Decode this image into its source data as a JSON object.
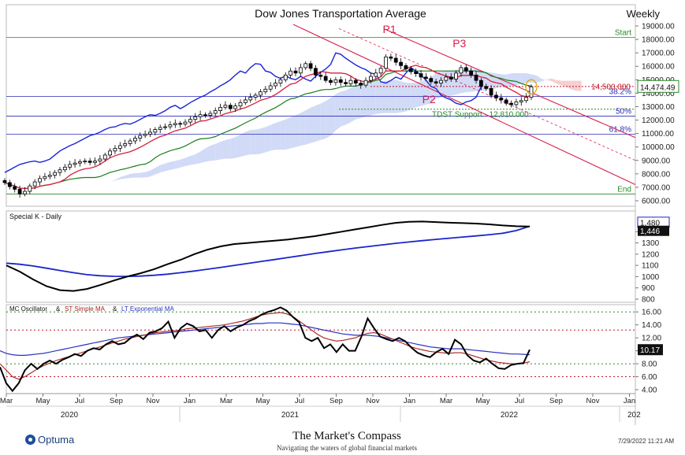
{
  "colors": {
    "price_up": "#ffffff",
    "price_down": "#000000",
    "tenkan": "#d6203a",
    "kijun": "#1a7d1a",
    "chikou": "#1b25d6",
    "cloud_bull": "#c9d3f5",
    "cloud_bear": "#f6c5c8",
    "channel": "#d6204a",
    "fib": "#2b2bb8",
    "special_k": "#000000",
    "special_k_signal": "#1b25c9",
    "mc_osc": "#000000",
    "mc_st": "#a5251f",
    "mc_lt": "#2b32c0",
    "green_dot": "#2a8a2a",
    "red_dot": "#c01a2a"
  },
  "chart_data": [
    {
      "type": "candlestick",
      "title": "Dow Jones Transportation Average",
      "timeframe": "Weekly",
      "ylim": [
        6000,
        19000
      ],
      "y_ticks": [
        "19000.00",
        "18000.00",
        "17000.00",
        "16000.00",
        "15000.00",
        "14000.00",
        "13000.00",
        "12000.00",
        "11000.00",
        "10000.00",
        "9000.00",
        "8000.00",
        "7000.00",
        "6000.00"
      ],
      "last_price": "14,474.49",
      "levels": [
        {
          "label": "Start",
          "value": 18150,
          "color": "#2a8a2a"
        },
        {
          "label": "38.2%",
          "value": 13750,
          "color": "#2b2bb8"
        },
        {
          "label": "50%",
          "value": 12300,
          "color": "#2b2bb8"
        },
        {
          "label": "61.8%",
          "value": 10950,
          "color": "#2b2bb8"
        },
        {
          "label": "End",
          "value": 6500,
          "color": "#2a8a2a"
        }
      ],
      "resistance": {
        "label": "14,500.000",
        "value": 14500
      },
      "support": {
        "label": "TDST Support - 12,810.000",
        "value": 12810
      },
      "annotations": [
        {
          "label": "P1",
          "idx": 0
        },
        {
          "label": "P2",
          "idx": 1
        },
        {
          "label": "P3",
          "idx": 2
        }
      ],
      "x_ticks": [
        "Mar",
        "May",
        "Jul",
        "Sep",
        "Nov",
        "Jan",
        "Mar",
        "May",
        "Jul",
        "Sep",
        "Nov",
        "Jan",
        "Mar",
        "May",
        "Jul",
        "Sep",
        "Nov",
        "Jan"
      ],
      "year_ticks": [
        "2020",
        "2021",
        "2022",
        "202"
      ],
      "close": [
        7350,
        7050,
        6850,
        6500,
        6700,
        7100,
        7400,
        7650,
        7800,
        7900,
        8100,
        8300,
        8500,
        8700,
        8800,
        8900,
        8950,
        8850,
        8950,
        9100,
        9400,
        9700,
        9900,
        10100,
        10250,
        10450,
        10650,
        10850,
        10950,
        11100,
        11300,
        11450,
        11500,
        11650,
        11750,
        11700,
        11850,
        12050,
        12250,
        12400,
        12350,
        12500,
        12700,
        12950,
        13100,
        12850,
        13050,
        13300,
        13500,
        13700,
        13850,
        14100,
        14300,
        14550,
        14750,
        15000,
        15350,
        15650,
        15500,
        15900,
        16200,
        15850,
        15350,
        15250,
        14950,
        14800,
        15000,
        14800,
        14700,
        14950,
        14750,
        14600,
        14950,
        15250,
        15500,
        15850,
        16700,
        16600,
        16300,
        16050,
        15800,
        15600,
        15450,
        15200,
        15100,
        14850,
        14750,
        14950,
        15200,
        15050,
        15500,
        15900,
        15650,
        15350,
        14950,
        14500,
        14350,
        13850,
        13650,
        13500,
        13250,
        13150,
        13350,
        13450,
        13700,
        14474
      ]
    },
    {
      "type": "line",
      "title": "Special K - Daily",
      "ylim": [
        800,
        1500
      ],
      "y_ticks": [
        "1400",
        "1300",
        "1200",
        "1100",
        "1000",
        "900",
        "800"
      ],
      "series": [
        {
          "name": "Special K",
          "last": "1,446",
          "values": [
            1100,
            1045,
            975,
            915,
            880,
            873,
            890,
            925,
            965,
            1000,
            1030,
            1065,
            1110,
            1150,
            1200,
            1240,
            1270,
            1290,
            1300,
            1310,
            1320,
            1330,
            1345,
            1360,
            1380,
            1400,
            1420,
            1440,
            1460,
            1478,
            1488,
            1490,
            1485,
            1480,
            1476,
            1472,
            1465,
            1455,
            1448,
            1446
          ]
        },
        {
          "name": "Signal",
          "last": "1,480",
          "values": [
            1120,
            1110,
            1095,
            1075,
            1055,
            1035,
            1018,
            1008,
            1003,
            1002,
            1005,
            1012,
            1022,
            1035,
            1050,
            1066,
            1083,
            1100,
            1118,
            1135,
            1152,
            1170,
            1188,
            1206,
            1222,
            1238,
            1254,
            1268,
            1282,
            1296,
            1308,
            1320,
            1331,
            1342,
            1352,
            1362,
            1373,
            1386,
            1410,
            1448
          ]
        }
      ]
    },
    {
      "type": "line",
      "title": "MC Oscillator & ST Simple MA & LT Exponential MA",
      "legend": [
        "MC Oscillator",
        "&",
        "ST Simple MA",
        "&",
        "LT Exponential MA"
      ],
      "ylim": [
        4,
        17
      ],
      "y_ticks": [
        "16.00",
        "14.00",
        "12.00",
        "10.00",
        "8.00",
        "6.00",
        "4.00"
      ],
      "levels": [
        {
          "value": 16,
          "color": "#2a8a2a"
        },
        {
          "value": 13.2,
          "color": "#c01a2a"
        },
        {
          "value": 8,
          "color": "#2a8a2a"
        },
        {
          "value": 6,
          "color": "#c01a2a"
        }
      ],
      "series": [
        {
          "name": "MC Oscillator",
          "last": "10.17",
          "values": [
            7.5,
            5,
            3.8,
            5,
            7,
            8,
            7.2,
            8,
            8.5,
            8,
            8.6,
            9,
            9.5,
            9.2,
            10,
            10.4,
            10.2,
            11,
            11.5,
            11,
            11.2,
            12,
            12.5,
            11.8,
            12.8,
            13,
            13.5,
            14.5,
            12,
            13.5,
            14.2,
            13.8,
            13,
            13.2,
            12,
            13.2,
            13.8,
            13,
            13.6,
            14,
            14.6,
            15,
            15.6,
            16,
            16.3,
            16.7,
            16.2,
            15.2,
            14.4,
            12,
            11.5,
            12,
            10.4,
            11,
            9.8,
            11,
            10,
            10,
            12.2,
            15,
            13.5,
            12.2,
            11.8,
            11.5,
            12,
            11.5,
            10.5,
            9.7,
            9.3,
            9,
            9.8,
            10.3,
            9.5,
            11.7,
            11,
            9.3,
            8.5,
            8.2,
            8.8,
            8,
            7.3,
            7.2,
            7.8,
            8,
            8.1,
            10.17
          ]
        },
        {
          "name": "ST Simple MA",
          "last": "",
          "values": [
            8,
            7,
            6,
            5.6,
            6,
            6.6,
            7.2,
            7.7,
            8.1,
            8.5,
            8.8,
            9.1,
            9.4,
            9.7,
            10,
            10.3,
            10.6,
            10.9,
            11.2,
            11.5,
            11.8,
            12,
            12.2,
            12.4,
            12.6,
            12.8,
            12.9,
            13,
            13.1,
            13.2,
            13.4,
            13.5,
            13.6,
            13.7,
            13.8,
            13.9,
            14,
            14.2,
            14.4,
            14.6,
            14.9,
            15.2,
            15.5,
            15.7,
            15.8,
            15.9,
            15.7,
            15.3,
            14.6,
            13.9,
            13.2,
            12.5,
            12,
            11.7,
            11.5,
            11.6,
            11.8,
            12,
            12.4,
            12.7,
            12.8,
            12.6,
            12.2,
            11.8,
            11.4,
            11,
            10.6,
            10.3,
            10.1,
            9.9,
            9.8,
            9.7,
            9.6,
            9.7,
            9.7,
            9.5,
            9.2,
            8.9,
            8.6,
            8.4,
            8.2,
            8.1,
            8,
            8,
            8.1,
            8.3
          ]
        },
        {
          "name": "LT Exponential MA",
          "last": "",
          "values": [
            10,
            9.6,
            9.4,
            9.3,
            9.3,
            9.4,
            9.5,
            9.6,
            9.8,
            10,
            10.2,
            10.4,
            10.6,
            10.8,
            11,
            11.2,
            11.4,
            11.6,
            11.8,
            12,
            12.1,
            12.2,
            12.3,
            12.4,
            12.5,
            12.6,
            12.7,
            12.8,
            12.9,
            13,
            13.1,
            13.2,
            13.3,
            13.4,
            13.5,
            13.6,
            13.7,
            13.8,
            13.9,
            14,
            14.1,
            14.2,
            14.2,
            14.3,
            14.3,
            14.3,
            14.2,
            14.1,
            14,
            13.8,
            13.6,
            13.4,
            13.2,
            13,
            12.8,
            12.6,
            12.5,
            12.4,
            12.4,
            12.4,
            12.3,
            12.2,
            12,
            11.8,
            11.6,
            11.4,
            11.2,
            11,
            10.8,
            10.6,
            10.5,
            10.4,
            10.3,
            10.3,
            10.3,
            10.2,
            10.1,
            10,
            9.9,
            9.8,
            9.7,
            9.6,
            9.5,
            9.5,
            9.45,
            9.4
          ]
        }
      ]
    }
  ],
  "footer": {
    "logo_text": "Optuma",
    "brand_title": "The Market's Compass",
    "brand_sub": "Navigating the waters of global financial markets",
    "timestamp": "7/29/2022 11:21 AM"
  }
}
